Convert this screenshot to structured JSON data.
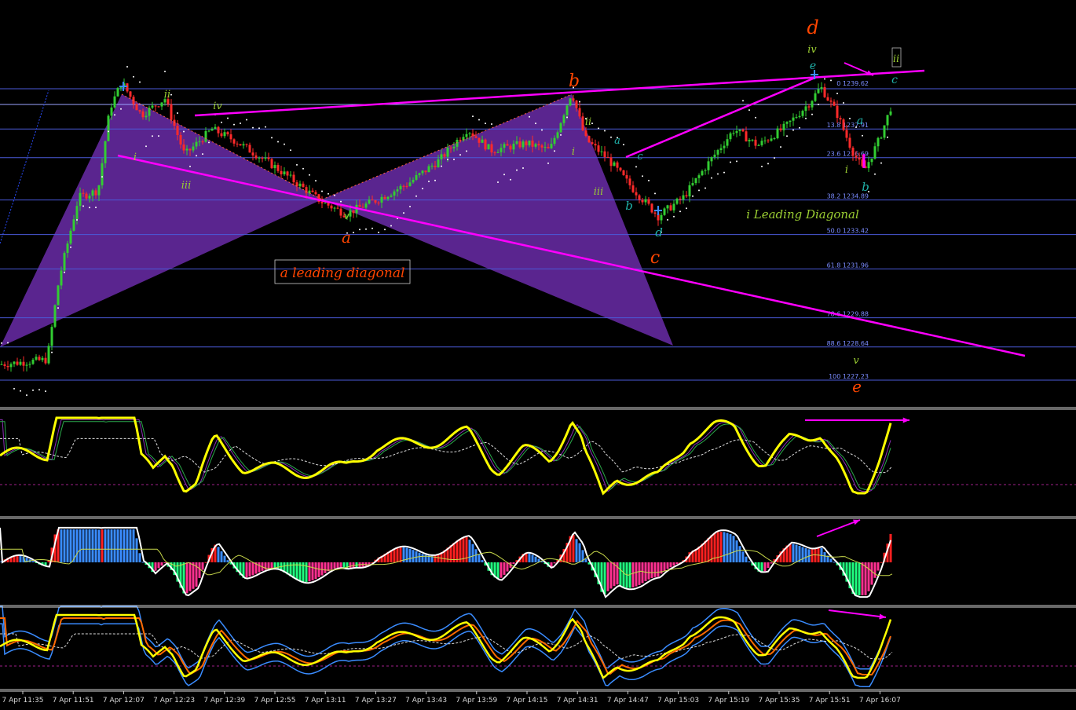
{
  "chart_data": {
    "type": "line",
    "symbol": "",
    "price_axis": {
      "min": 1226.5,
      "max": 1242.0
    },
    "fib_levels": [
      {
        "label": "0 1239.62",
        "price": 1239.62
      },
      {
        "label": "13.8 1237.91",
        "price": 1237.91
      },
      {
        "label": "23.6 1236.69",
        "price": 1236.69
      },
      {
        "label": "38.2 1234.89",
        "price": 1234.89
      },
      {
        "label": "50.0 1233.42",
        "price": 1233.42
      },
      {
        "label": "61.8 1231.96",
        "price": 1231.96
      },
      {
        "label": "78.6 1229.88",
        "price": 1229.88
      },
      {
        "label": "88.6 1228.64",
        "price": 1228.64
      },
      {
        "label": "100 1227.23",
        "price": 1227.23
      }
    ],
    "x_ticks": [
      "7 Apr 11:35",
      "7 Apr 11:51",
      "7 Apr 12:07",
      "7 Apr 12:23",
      "7 Apr 12:39",
      "7 Apr 12:55",
      "7 Apr 13:11",
      "7 Apr 13:27",
      "7 Apr 13:43",
      "7 Apr 13:59",
      "7 Apr 14:15",
      "7 Apr 14:31",
      "7 Apr 14:47",
      "7 Apr 15:03",
      "7 Apr 15:19",
      "7 Apr 15:35",
      "7 Apr 15:51",
      "7 Apr 16:07"
    ],
    "wave_labels": [
      {
        "text": "ii",
        "color": "#9acd32"
      },
      {
        "text": "iv",
        "color": "#9acd32"
      },
      {
        "text": "i",
        "color": "#9acd32"
      },
      {
        "text": "iii",
        "color": "#9acd32"
      },
      {
        "text": "v",
        "color": "#9acd32"
      },
      {
        "text": "a",
        "color": "#ff4500"
      },
      {
        "text": "b",
        "color": "#ff4500"
      },
      {
        "text": "ii",
        "color": "#9acd32"
      },
      {
        "text": "i",
        "color": "#9acd32"
      },
      {
        "text": "iii",
        "color": "#9acd32"
      },
      {
        "text": "a",
        "color": "#20b2aa"
      },
      {
        "text": "b",
        "color": "#20b2aa"
      },
      {
        "text": "c",
        "color": "#20b2aa"
      },
      {
        "text": "d",
        "color": "#20b2aa"
      },
      {
        "text": "c",
        "color": "#ff4500"
      },
      {
        "text": "d",
        "color": "#ff4500"
      },
      {
        "text": "iv",
        "color": "#9acd32"
      },
      {
        "text": "e",
        "color": "#20b2aa"
      },
      {
        "text": "ii",
        "color": "#9acd32"
      },
      {
        "text": "c",
        "color": "#20b2aa"
      },
      {
        "text": "a",
        "color": "#20b2aa"
      },
      {
        "text": "i",
        "color": "#9acd32"
      },
      {
        "text": "b",
        "color": "#20b2aa"
      },
      {
        "text": "v",
        "color": "#9acd32"
      },
      {
        "text": "e",
        "color": "#ff4500"
      }
    ],
    "annotations": [
      {
        "text": "a leading diagonal",
        "color": "#ff4500"
      },
      {
        "text": "i Leading Diagonal",
        "color": "#9acd32"
      }
    ],
    "colors": {
      "background": "#000000",
      "bull_candle": "#32cd32",
      "bear_candle": "#ff2a2a",
      "pattern_fill": "#6a2ca8",
      "trendline": "#ff00ff",
      "fib_line": "#4a5ad8",
      "oscillator_main": "#ffff00",
      "hist_up": "#ff2020",
      "hist_down": "#20ff80"
    }
  }
}
